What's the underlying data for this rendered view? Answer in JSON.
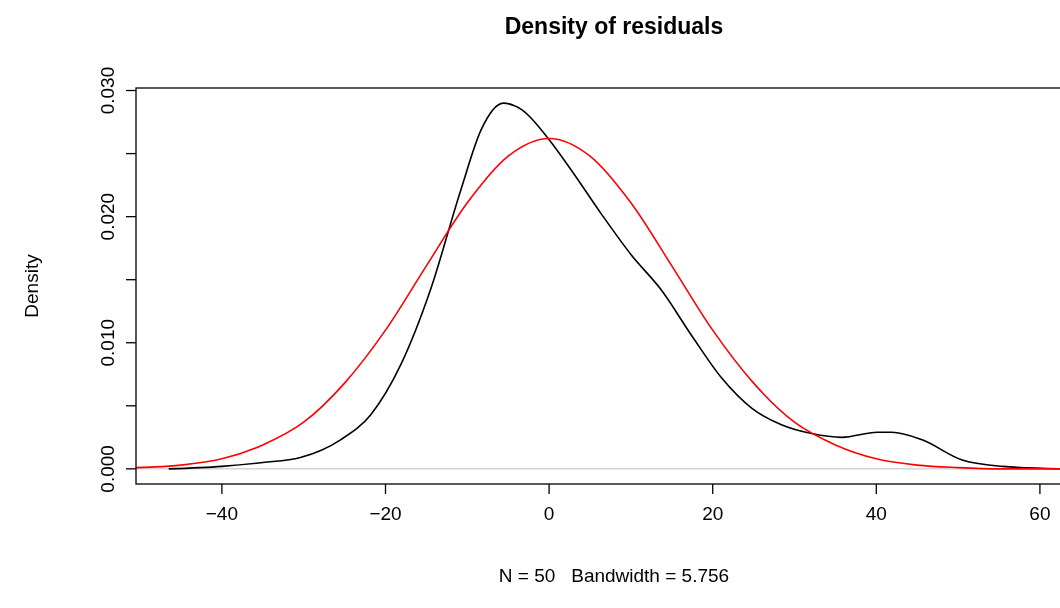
{
  "chart_data": {
    "type": "line",
    "title": "Density of residuals",
    "xlabel": "N = 50   Bandwidth = 5.756",
    "ylabel": "Density",
    "xlim": [
      -50.5,
      62.7
    ],
    "ylim": [
      -0.0012,
      0.0302
    ],
    "xticks": [
      {
        "value": -40,
        "label": "−40"
      },
      {
        "value": -20,
        "label": "−20"
      },
      0,
      20,
      40,
      60
    ],
    "yticks": [
      {
        "value": 0,
        "label": "0.000"
      },
      {
        "value": 0.005,
        "label": null
      },
      {
        "value": 0.01,
        "label": "0.010"
      },
      {
        "value": 0.015,
        "label": null
      },
      {
        "value": 0.02,
        "label": "0.020"
      },
      {
        "value": 0.025,
        "label": null
      },
      {
        "value": 0.03,
        "label": "0.030"
      }
    ],
    "grid": false,
    "line_style": "solid",
    "marker": "none",
    "ref_lines": [
      {
        "axis": "y",
        "value": 0,
        "color": "#bebebe"
      }
    ],
    "series": [
      {
        "color": "#000000",
        "x": [
          -46.5,
          -40,
          -35,
          -30.4,
          -25.5,
          -21.8,
          -18.1,
          -14.5,
          -10.8,
          -8.3,
          -5.6,
          -3.4,
          0,
          2.7,
          6.4,
          10,
          13.7,
          17.4,
          21.1,
          24.8,
          28.4,
          32.1,
          35.8,
          40.1,
          41.9,
          45.6,
          50.5,
          55.4,
          62.7
        ],
        "values": [
          0,
          0.0002,
          0.0005,
          0.0009,
          0.0023,
          0.0043,
          0.0083,
          0.0142,
          0.0221,
          0.0269,
          0.029,
          0.0285,
          0.0261,
          0.0237,
          0.0202,
          0.017,
          0.0142,
          0.0106,
          0.0072,
          0.0048,
          0.0035,
          0.0028,
          0.0025,
          0.0029,
          0.0029,
          0.0023,
          0.0007,
          0.0002,
          0
        ]
      },
      {
        "color": "#ff0000",
        "x": [
          -50.5,
          -45,
          -40,
          -35,
          -30,
          -25,
          -20,
          -15,
          -10,
          -5,
          0,
          5,
          10,
          15,
          20,
          25,
          30,
          35,
          40,
          45,
          50,
          55,
          62.7
        ],
        "values": [
          0.0001,
          0.0003,
          0.0008,
          0.0019,
          0.0037,
          0.0068,
          0.011,
          0.0161,
          0.0211,
          0.0248,
          0.0262,
          0.0248,
          0.0211,
          0.0161,
          0.011,
          0.0068,
          0.0037,
          0.0019,
          0.0008,
          0.0003,
          0.0001,
          0,
          0
        ]
      }
    ]
  }
}
